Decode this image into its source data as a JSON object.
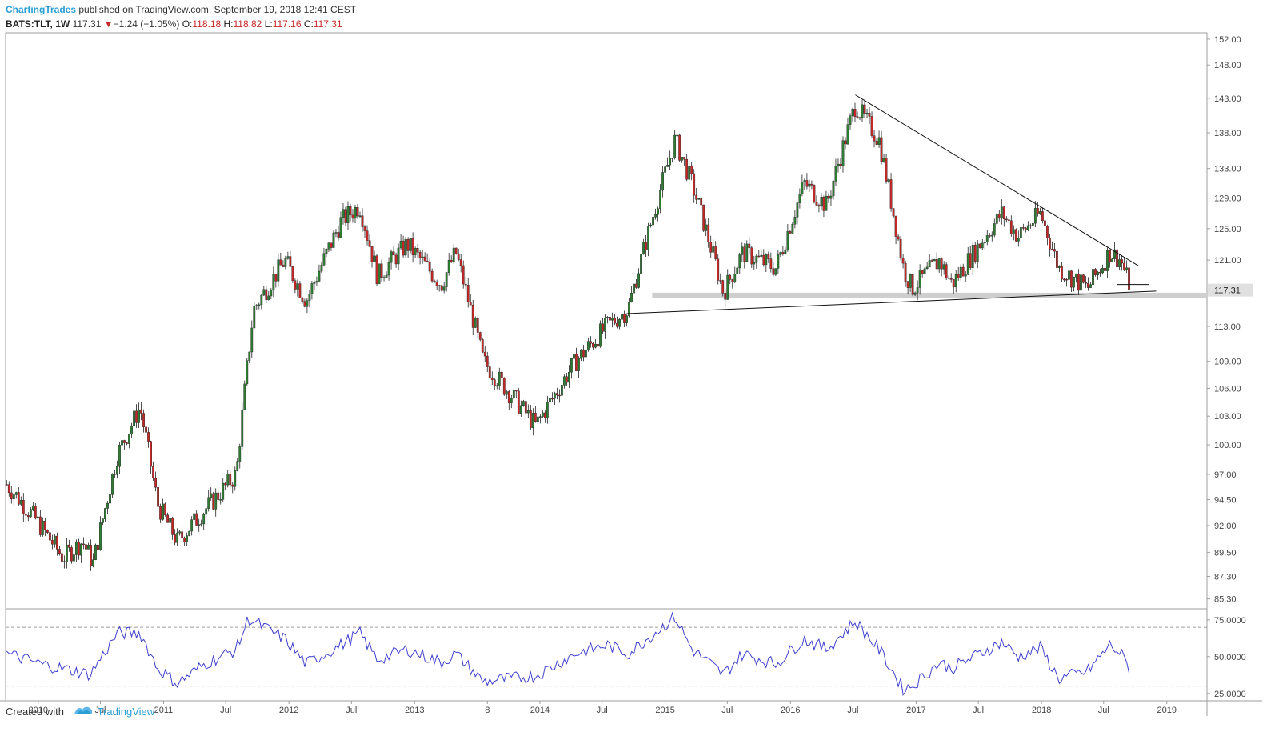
{
  "header": {
    "author": "ChartingTrades",
    "published_text": "published on TradingView.com, September 19, 2018 12:41 CEST",
    "symbol": "BATS:TLT, 1W",
    "last": "117.31",
    "change_arrow": "▼",
    "change": "−1.24 (−1.05%)",
    "open_label": "O:",
    "open": "118.18",
    "high_label": "H:",
    "high": "118.82",
    "low_label": "L:",
    "low": "117.16",
    "close_label": "C:",
    "close": "117.31"
  },
  "footer": {
    "created_with": "Created with",
    "brand": "TradingView"
  },
  "colors": {
    "up": "#2e7d32",
    "down": "#c62828",
    "rsi": "#3f3fd1",
    "trendline": "#111111",
    "support_zone": "#cfcfcf",
    "price_badge": "#e0e0e0"
  },
  "chart_data": [
    {
      "type": "candlestick",
      "interval": "1W",
      "y_ticks": [
        "152.00",
        "148.00",
        "143.00",
        "138.00",
        "133.00",
        "129.00",
        "125.00",
        "121.00",
        "117.31",
        "113.00",
        "109.00",
        "106.00",
        "103.00",
        "100.00",
        "97.00",
        "94.50",
        "92.00",
        "89.50",
        "87.30",
        "85.30"
      ],
      "x_ticks": [
        "2010",
        "Jul",
        "2011",
        "Jul",
        "2012",
        "Jul",
        "2013",
        "8",
        "2014",
        "Jul",
        "2015",
        "Jul",
        "2016",
        "Jul",
        "2017",
        "Jul",
        "2018",
        "Jul",
        "2019"
      ],
      "ylim": [
        84.5,
        153
      ],
      "y_scale": "log",
      "last_price": 117.31,
      "path": [
        [
          "2009-10-01",
          96
        ],
        [
          "2009-12-15",
          93
        ],
        [
          "2010-03-15",
          89
        ],
        [
          "2010-05-10",
          90.5
        ],
        [
          "2010-06-10",
          88.5
        ],
        [
          "2010-08-20",
          99
        ],
        [
          "2010-10-25",
          104
        ],
        [
          "2010-12-15",
          94
        ],
        [
          "2011-02-10",
          90.5
        ],
        [
          "2011-06-10",
          95
        ],
        [
          "2011-08-01",
          97
        ],
        [
          "2011-09-20",
          115
        ],
        [
          "2011-12-20",
          121
        ],
        [
          "2012-02-20",
          116
        ],
        [
          "2012-06-01",
          126
        ],
        [
          "2012-07-25",
          128
        ],
        [
          "2012-09-15",
          119
        ],
        [
          "2012-12-10",
          123
        ],
        [
          "2013-03-20",
          118
        ],
        [
          "2013-05-01",
          122
        ],
        [
          "2013-07-20",
          109
        ],
        [
          "2013-12-20",
          102
        ],
        [
          "2014-04-15",
          109
        ],
        [
          "2014-07-15",
          113
        ],
        [
          "2014-09-15",
          115
        ],
        [
          "2015-01-30",
          137
        ],
        [
          "2015-03-20",
          131
        ],
        [
          "2015-06-20",
          117
        ],
        [
          "2015-08-15",
          122
        ],
        [
          "2015-11-20",
          120
        ],
        [
          "2016-02-10",
          131
        ],
        [
          "2016-04-15",
          128
        ],
        [
          "2016-07-08",
          142
        ],
        [
          "2016-09-15",
          137
        ],
        [
          "2016-11-25",
          120
        ],
        [
          "2016-12-20",
          117.5
        ],
        [
          "2017-03-10",
          121
        ],
        [
          "2017-04-15",
          118
        ],
        [
          "2017-09-08",
          127
        ],
        [
          "2017-10-25",
          124
        ],
        [
          "2017-12-29",
          127
        ],
        [
          "2018-02-20",
          120
        ],
        [
          "2018-05-15",
          117.5
        ],
        [
          "2018-07-20",
          122
        ],
        [
          "2018-08-20",
          121
        ],
        [
          "2018-09-19",
          117.31
        ]
      ],
      "trendlines": [
        {
          "from": [
            "2016-07-08",
            143.5
          ],
          "to": [
            "2018-10-10",
            120.3
          ]
        },
        {
          "from": [
            "2014-09-10",
            114.5
          ],
          "to": [
            "2018-12-01",
            117.2
          ]
        },
        {
          "from": [
            "2018-08-10",
            118.0
          ],
          "to": [
            "2018-11-10",
            118.0
          ]
        }
      ],
      "support_zone": {
        "from": "2014-12-01",
        "to": "2019-05-01",
        "low": 116.4,
        "high": 117.0
      }
    },
    {
      "type": "line",
      "indicator": "RSI",
      "y_ticks": [
        "75.0000",
        "50.0000",
        "25.0000"
      ],
      "ylim": [
        20,
        82
      ],
      "levels": [
        70,
        30
      ],
      "anchors": [
        [
          "2009-10-01",
          52
        ],
        [
          "2010-01-10",
          45
        ],
        [
          "2010-06-01",
          38
        ],
        [
          "2010-08-20",
          66
        ],
        [
          "2010-10-25",
          66
        ],
        [
          "2010-12-15",
          42
        ],
        [
          "2011-02-10",
          32
        ],
        [
          "2011-05-01",
          45
        ],
        [
          "2011-08-01",
          55
        ],
        [
          "2011-09-05",
          76
        ],
        [
          "2011-12-20",
          62
        ],
        [
          "2012-02-20",
          45
        ],
        [
          "2012-06-01",
          58
        ],
        [
          "2012-07-25",
          66
        ],
        [
          "2012-09-15",
          48
        ],
        [
          "2012-12-10",
          55
        ],
        [
          "2013-03-20",
          46
        ],
        [
          "2013-05-01",
          52
        ],
        [
          "2013-07-20",
          33
        ],
        [
          "2013-12-20",
          37
        ],
        [
          "2014-04-15",
          52
        ],
        [
          "2014-07-15",
          58
        ],
        [
          "2014-09-15",
          52
        ],
        [
          "2015-01-30",
          77
        ],
        [
          "2015-03-20",
          55
        ],
        [
          "2015-06-20",
          38
        ],
        [
          "2015-08-15",
          52
        ],
        [
          "2015-11-20",
          45
        ],
        [
          "2016-02-10",
          62
        ],
        [
          "2016-04-15",
          55
        ],
        [
          "2016-07-08",
          74
        ],
        [
          "2016-09-15",
          55
        ],
        [
          "2016-11-25",
          28
        ],
        [
          "2016-12-20",
          30
        ],
        [
          "2017-03-10",
          46
        ],
        [
          "2017-04-15",
          42
        ],
        [
          "2017-09-08",
          60
        ],
        [
          "2017-10-25",
          50
        ],
        [
          "2017-12-29",
          56
        ],
        [
          "2018-02-20",
          35
        ],
        [
          "2018-05-15",
          40
        ],
        [
          "2018-07-20",
          58
        ],
        [
          "2018-08-20",
          52
        ],
        [
          "2018-09-19",
          40
        ]
      ]
    }
  ]
}
